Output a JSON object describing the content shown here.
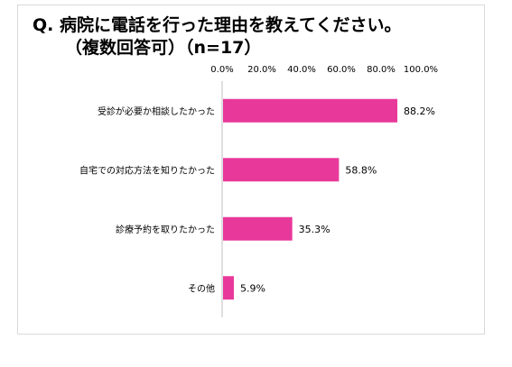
{
  "header": {
    "title_line1": "Q. 病院に電話を行った理由を教えてください。",
    "title_line2": "（複数回答可）（n=17）"
  },
  "chart_data": {
    "type": "bar",
    "orientation": "horizontal",
    "categories": [
      "受診が必要か相談したかった",
      "自宅での対応方法を知りたかった",
      "診療予約を取りたかった",
      "その他"
    ],
    "values": [
      88.2,
      58.8,
      35.3,
      5.9
    ],
    "data_labels": [
      "88.2%",
      "58.8%",
      "35.3%",
      "5.9%"
    ],
    "x_ticks": [
      0,
      20,
      40,
      60,
      80,
      100
    ],
    "x_tick_labels": [
      "0.0%",
      "20.0%",
      "40.0%",
      "60.0%",
      "80.0%",
      "100.0%"
    ],
    "xlim": [
      0,
      100
    ],
    "axis_position": "top",
    "grid": false,
    "bar_color": "#e8389a",
    "axis_color": "#bfbfbf"
  }
}
